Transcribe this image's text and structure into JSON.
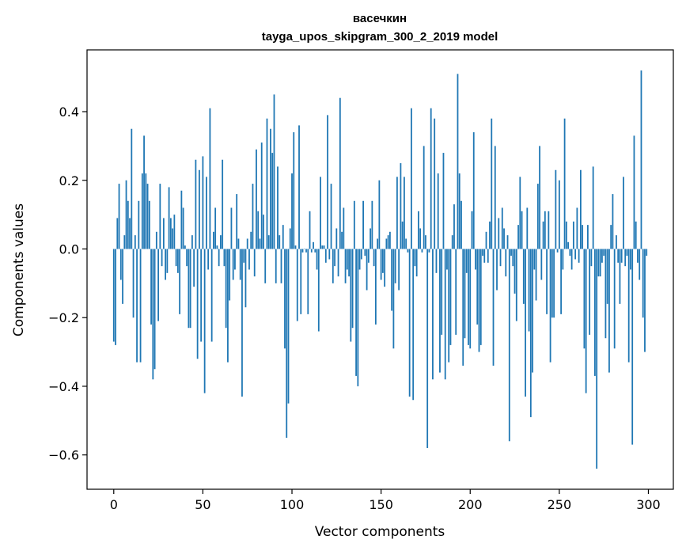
{
  "chart_data": {
    "type": "bar",
    "title": "васечкин",
    "subtitle": "tayga_upos_skipgram_300_2_2019 model",
    "xlabel": "Vector components",
    "ylabel": "Components values",
    "xlim": [
      -15,
      314
    ],
    "ylim": [
      -0.7,
      0.58
    ],
    "xticks": [
      0,
      50,
      100,
      150,
      200,
      250,
      300
    ],
    "xtick_labels": [
      "0",
      "50",
      "100",
      "150",
      "200",
      "250",
      "300"
    ],
    "yticks": [
      -0.6,
      -0.4,
      -0.2,
      0.0,
      0.2,
      0.4
    ],
    "ytick_labels": [
      "−0.6",
      "−0.4",
      "−0.2",
      "0.0",
      "0.2",
      "0.4"
    ],
    "grid": false,
    "bar_color": "#1f77b4",
    "x_start": 0,
    "values": [
      -0.27,
      -0.28,
      0.09,
      0.19,
      -0.09,
      -0.16,
      0.04,
      0.2,
      0.14,
      0.09,
      0.35,
      -0.2,
      0.04,
      -0.33,
      0.14,
      -0.33,
      0.22,
      0.33,
      0.22,
      0.19,
      0.14,
      -0.22,
      -0.38,
      -0.35,
      0.05,
      -0.21,
      0.19,
      -0.05,
      0.09,
      -0.09,
      -0.07,
      0.18,
      0.09,
      0.06,
      0.1,
      -0.05,
      -0.07,
      -0.19,
      0.17,
      0.12,
      0.01,
      -0.05,
      -0.23,
      -0.23,
      0.04,
      -0.11,
      0.26,
      -0.32,
      0.23,
      -0.27,
      0.27,
      -0.42,
      0.21,
      -0.06,
      0.41,
      -0.27,
      0.05,
      0.12,
      0.01,
      -0.05,
      0.04,
      0.26,
      -0.05,
      -0.23,
      -0.33,
      -0.15,
      0.12,
      -0.09,
      -0.06,
      0.16,
      0.03,
      -0.09,
      -0.43,
      -0.04,
      -0.17,
      0.03,
      -0.06,
      0.05,
      0.19,
      -0.08,
      0.29,
      0.11,
      0.03,
      0.31,
      0.1,
      -0.1,
      0.38,
      0.04,
      0.35,
      0.28,
      0.45,
      -0.1,
      0.24,
      0.04,
      -0.1,
      0.07,
      -0.29,
      -0.55,
      -0.45,
      0.06,
      0.22,
      0.34,
      0.01,
      -0.21,
      0.36,
      -0.19,
      -0.01,
      0.0,
      -0.01,
      -0.19,
      0.11,
      -0.01,
      0.02,
      -0.01,
      -0.06,
      -0.24,
      0.21,
      0.01,
      0.01,
      -0.04,
      0.39,
      -0.03,
      0.19,
      -0.1,
      -0.05,
      0.06,
      -0.08,
      0.44,
      0.05,
      0.12,
      -0.1,
      -0.06,
      -0.08,
      -0.27,
      -0.23,
      0.14,
      -0.37,
      -0.4,
      -0.06,
      -0.03,
      0.14,
      -0.02,
      -0.12,
      -0.04,
      0.06,
      0.14,
      -0.05,
      -0.22,
      0.03,
      0.2,
      -0.09,
      -0.07,
      -0.11,
      0.03,
      0.04,
      0.05,
      -0.18,
      -0.29,
      -0.1,
      0.21,
      -0.12,
      0.25,
      0.08,
      0.21,
      0.03,
      -0.01,
      -0.43,
      0.41,
      -0.44,
      -0.05,
      -0.08,
      0.11,
      0.06,
      -0.01,
      0.3,
      0.04,
      -0.58,
      -0.01,
      0.41,
      -0.38,
      0.38,
      -0.07,
      0.22,
      -0.36,
      -0.25,
      0.28,
      -0.38,
      -0.06,
      -0.33,
      -0.28,
      0.04,
      0.13,
      -0.25,
      0.51,
      0.22,
      0.14,
      -0.34,
      -0.26,
      -0.07,
      -0.28,
      -0.29,
      0.11,
      0.34,
      -0.06,
      -0.22,
      -0.3,
      -0.28,
      -0.02,
      -0.04,
      0.05,
      -0.04,
      0.08,
      0.38,
      -0.34,
      0.3,
      -0.12,
      0.09,
      -0.05,
      0.12,
      0.06,
      -0.08,
      0.04,
      -0.56,
      -0.02,
      -0.05,
      -0.13,
      -0.21,
      0.07,
      0.21,
      0.11,
      -0.16,
      -0.43,
      0.12,
      -0.24,
      -0.49,
      -0.36,
      -0.06,
      -0.15,
      0.19,
      0.3,
      -0.09,
      0.08,
      0.11,
      -0.19,
      0.11,
      -0.33,
      -0.2,
      -0.2,
      0.23,
      -0.01,
      0.2,
      -0.19,
      -0.06,
      0.38,
      0.08,
      0.02,
      -0.02,
      -0.06,
      0.08,
      -0.03,
      0.12,
      -0.04,
      0.23,
      0.07,
      -0.29,
      -0.42,
      0.07,
      -0.25,
      -0.05,
      0.24,
      -0.37,
      -0.64,
      -0.08,
      -0.08,
      -0.04,
      -0.02,
      -0.26,
      -0.16,
      -0.36,
      0.07,
      0.16,
      -0.29,
      0.04,
      -0.04,
      -0.16,
      -0.04,
      0.21,
      -0.05,
      -0.02,
      -0.33,
      -0.06,
      -0.57,
      0.33,
      0.08,
      -0.04,
      -0.09,
      0.52,
      -0.2,
      -0.3,
      -0.02
    ]
  }
}
